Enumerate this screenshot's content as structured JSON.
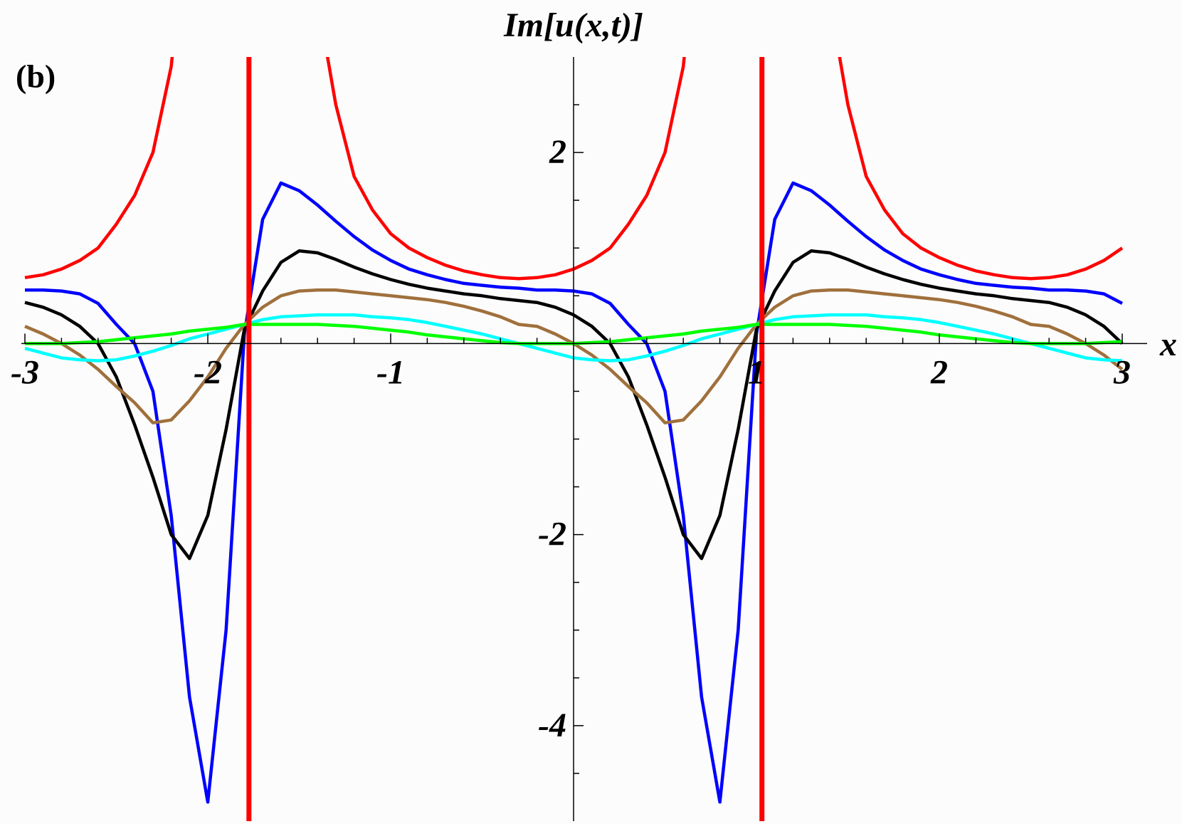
{
  "chart_data": {
    "type": "line",
    "title": "Im[u(x,t)]",
    "panel_label": "(b)",
    "xlabel": "x",
    "x": [
      -3,
      -2.9,
      -2.8,
      -2.7,
      -2.6,
      -2.5,
      -2.4,
      -2.3,
      -2.2,
      -2.1,
      -2,
      -1.9,
      -1.8,
      -1.7,
      -1.6,
      -1.5,
      -1.4,
      -1.3,
      -1.2,
      -1.1,
      -1,
      -0.9,
      -0.8,
      -0.7,
      -0.6,
      -0.5,
      -0.4,
      -0.3,
      -0.2,
      -0.1,
      0,
      0.1,
      0.2,
      0.3,
      0.4,
      0.5,
      0.6,
      0.7,
      0.8,
      0.9,
      1,
      1.1,
      1.2,
      1.3,
      1.4,
      1.5,
      1.6,
      1.7,
      1.8,
      1.9,
      2,
      2.1,
      2.2,
      2.3,
      2.4,
      2.5,
      2.6,
      2.7,
      2.8,
      2.9,
      3
    ],
    "series": [
      {
        "color": "#ff0000",
        "values": [
          0.69,
          0.72,
          0.78,
          0.87,
          1.0,
          1.25,
          1.55,
          2.0,
          2.9,
          4.8,
          null,
          null,
          null,
          null,
          null,
          null,
          3.6,
          2.5,
          1.75,
          1.4,
          1.15,
          1.0,
          0.9,
          0.82,
          0.76,
          0.72,
          0.69,
          0.68,
          0.69,
          0.72,
          0.78,
          0.87,
          1.0,
          1.25,
          1.55,
          2.0,
          2.9,
          4.8,
          null,
          null,
          null,
          null,
          null,
          null,
          3.6,
          2.5,
          1.75,
          1.4,
          1.15,
          1.0,
          0.9,
          0.82,
          0.76,
          0.72,
          0.69,
          0.68,
          0.69,
          0.72,
          0.78,
          0.87,
          1.0
        ]
      },
      {
        "color": "#0000ff",
        "values": [
          0.56,
          0.56,
          0.55,
          0.52,
          0.42,
          0.2,
          0.0,
          -0.5,
          -1.8,
          -3.7,
          -4.8,
          -3.0,
          0.1,
          1.3,
          1.68,
          1.6,
          1.45,
          1.28,
          1.12,
          0.98,
          0.87,
          0.78,
          0.72,
          0.67,
          0.63,
          0.61,
          0.59,
          0.58,
          0.56,
          0.56,
          0.55,
          0.52,
          0.42,
          0.2,
          0.0,
          -0.5,
          -1.8,
          -3.7,
          -4.8,
          -3.0,
          0.1,
          1.3,
          1.68,
          1.6,
          1.45,
          1.28,
          1.12,
          0.98,
          0.87,
          0.78,
          0.72,
          0.67,
          0.63,
          0.61,
          0.59,
          0.58,
          0.56,
          0.56,
          0.55,
          0.52,
          0.42
        ]
      },
      {
        "color": "#000000",
        "values": [
          0.43,
          0.38,
          0.3,
          0.18,
          0.0,
          -0.35,
          -0.85,
          -1.4,
          -2.0,
          -2.25,
          -1.8,
          -0.9,
          0.15,
          0.55,
          0.85,
          0.97,
          0.95,
          0.88,
          0.8,
          0.73,
          0.67,
          0.62,
          0.58,
          0.55,
          0.52,
          0.5,
          0.47,
          0.45,
          0.43,
          0.38,
          0.3,
          0.18,
          0.0,
          -0.35,
          -0.85,
          -1.4,
          -2.0,
          -2.25,
          -1.8,
          -0.9,
          0.15,
          0.55,
          0.85,
          0.97,
          0.95,
          0.88,
          0.8,
          0.73,
          0.67,
          0.62,
          0.58,
          0.55,
          0.52,
          0.5,
          0.47,
          0.45,
          0.43,
          0.38,
          0.3,
          0.18,
          0.0
        ]
      },
      {
        "color": "#a0703c",
        "values": [
          0.18,
          0.1,
          0.0,
          -0.12,
          -0.27,
          -0.45,
          -0.62,
          -0.83,
          -0.8,
          -0.6,
          -0.35,
          -0.05,
          0.2,
          0.38,
          0.5,
          0.55,
          0.56,
          0.56,
          0.54,
          0.52,
          0.5,
          0.48,
          0.46,
          0.43,
          0.39,
          0.34,
          0.28,
          0.2,
          0.18,
          0.1,
          0.0,
          -0.12,
          -0.27,
          -0.45,
          -0.62,
          -0.83,
          -0.8,
          -0.6,
          -0.35,
          -0.05,
          0.2,
          0.38,
          0.5,
          0.55,
          0.56,
          0.56,
          0.54,
          0.52,
          0.5,
          0.48,
          0.46,
          0.43,
          0.39,
          0.34,
          0.28,
          0.2,
          0.18,
          0.1,
          0.0,
          -0.12,
          -0.27
        ]
      },
      {
        "color": "#00ffff",
        "values": [
          -0.05,
          -0.1,
          -0.15,
          -0.17,
          -0.18,
          -0.17,
          -0.13,
          -0.08,
          -0.02,
          0.05,
          0.1,
          0.15,
          0.2,
          0.25,
          0.28,
          0.29,
          0.3,
          0.3,
          0.3,
          0.28,
          0.27,
          0.25,
          0.22,
          0.18,
          0.14,
          0.1,
          0.05,
          0.0,
          -0.05,
          -0.1,
          -0.15,
          -0.17,
          -0.18,
          -0.17,
          -0.13,
          -0.08,
          -0.02,
          0.05,
          0.1,
          0.15,
          0.2,
          0.25,
          0.28,
          0.29,
          0.3,
          0.3,
          0.3,
          0.28,
          0.27,
          0.25,
          0.22,
          0.18,
          0.14,
          0.1,
          0.05,
          0.0,
          -0.05,
          -0.1,
          -0.15,
          -0.17,
          -0.18
        ]
      },
      {
        "color": "#00ff00",
        "values": [
          0,
          0,
          0,
          0.01,
          0.02,
          0.04,
          0.06,
          0.08,
          0.1,
          0.13,
          0.15,
          0.17,
          0.2,
          0.2,
          0.2,
          0.2,
          0.2,
          0.19,
          0.18,
          0.16,
          0.14,
          0.12,
          0.09,
          0.07,
          0.05,
          0.03,
          0.01,
          0,
          0,
          0,
          0,
          0.01,
          0.02,
          0.04,
          0.06,
          0.08,
          0.1,
          0.13,
          0.15,
          0.17,
          0.2,
          0.2,
          0.2,
          0.2,
          0.2,
          0.19,
          0.18,
          0.16,
          0.14,
          0.12,
          0.09,
          0.07,
          0.05,
          0.03,
          0.01,
          0,
          0,
          0,
          0,
          0.01,
          0.02
        ]
      }
    ],
    "vertical_lines": [
      {
        "x": -1.775,
        "color": "#ff0000"
      },
      {
        "x": 1.03,
        "color": "#ff0000"
      }
    ],
    "xlim": [
      -3,
      3
    ],
    "ylim": [
      -5,
      3
    ],
    "xticks": [
      -3,
      -2,
      -1,
      1,
      2,
      3
    ],
    "xticks_minor": [
      -2.8,
      -2.6,
      -2.4,
      -2.2,
      -1.8,
      -1.6,
      -1.4,
      -1.2,
      -0.8,
      -0.6,
      -0.4,
      -0.2,
      0.2,
      0.4,
      0.6,
      0.8,
      1.2,
      1.4,
      1.6,
      1.8,
      2.2,
      2.4,
      2.6,
      2.8
    ],
    "yticks": [
      -4,
      -2,
      2
    ],
    "yticks_minor": [
      -4.5,
      -3.5,
      -3,
      -2.5,
      -1.5,
      -1,
      -0.5,
      0.5,
      1,
      1.5,
      2.5
    ]
  }
}
